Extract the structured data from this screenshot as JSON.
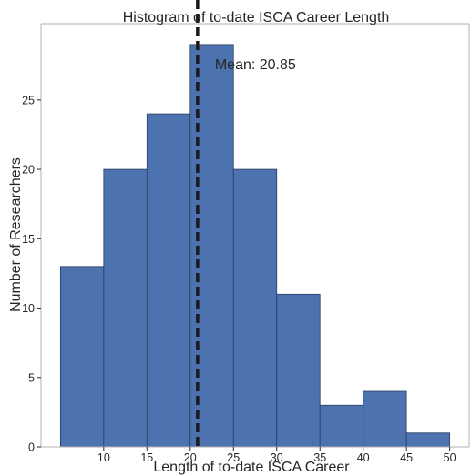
{
  "chart_data": {
    "type": "bar",
    "title": "Histogram of to-date ISCA Career Length",
    "xlabel": "Length of to-date ISCA Career",
    "ylabel": "Number of Researchers",
    "bin_edges": [
      5,
      10,
      15,
      20,
      25,
      30,
      35,
      40,
      45,
      50
    ],
    "values": [
      13,
      20,
      24,
      29,
      20,
      11,
      3,
      4,
      1
    ],
    "xlim": [
      2.75,
      52.25
    ],
    "ylim": [
      0,
      30.5
    ],
    "xticks": [
      10,
      15,
      20,
      25,
      30,
      35,
      40,
      45,
      50
    ],
    "yticks": [
      0,
      5,
      10,
      15,
      20,
      25
    ],
    "bar_color": "#4c72b0",
    "grid": false,
    "mean_line": {
      "x": 20.85,
      "label": "Mean: 20.85",
      "color": "#1a1a1a",
      "style": "dashed"
    }
  }
}
